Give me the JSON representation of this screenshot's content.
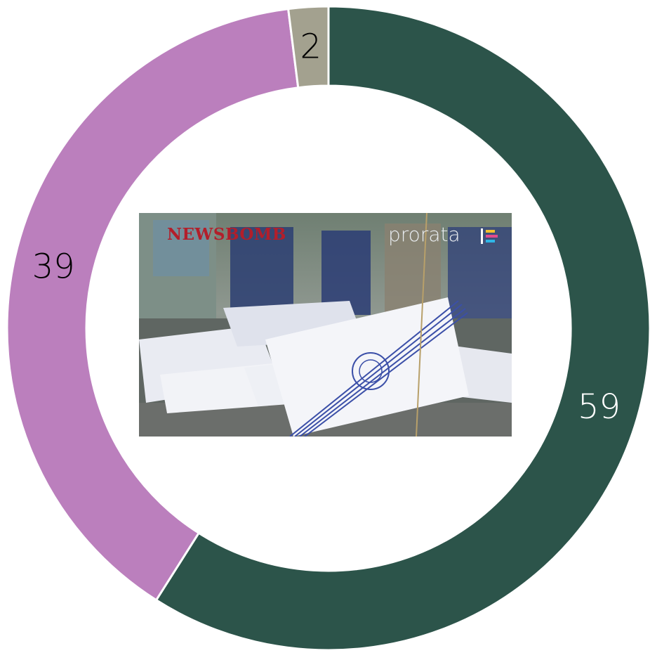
{
  "chart_data": {
    "type": "pie",
    "donut": true,
    "categories": [
      "",
      "",
      ""
    ],
    "values": [
      59,
      39,
      2
    ],
    "colors": [
      "#2c544a",
      "#bb7fbd",
      "#a3a18f"
    ],
    "label_colors": [
      "#ffffff",
      "#000000",
      "#000000"
    ],
    "title": "",
    "legend": "none"
  },
  "center_image": {
    "brand_left": "NEWSBOMB",
    "brand_right": "prorata"
  }
}
